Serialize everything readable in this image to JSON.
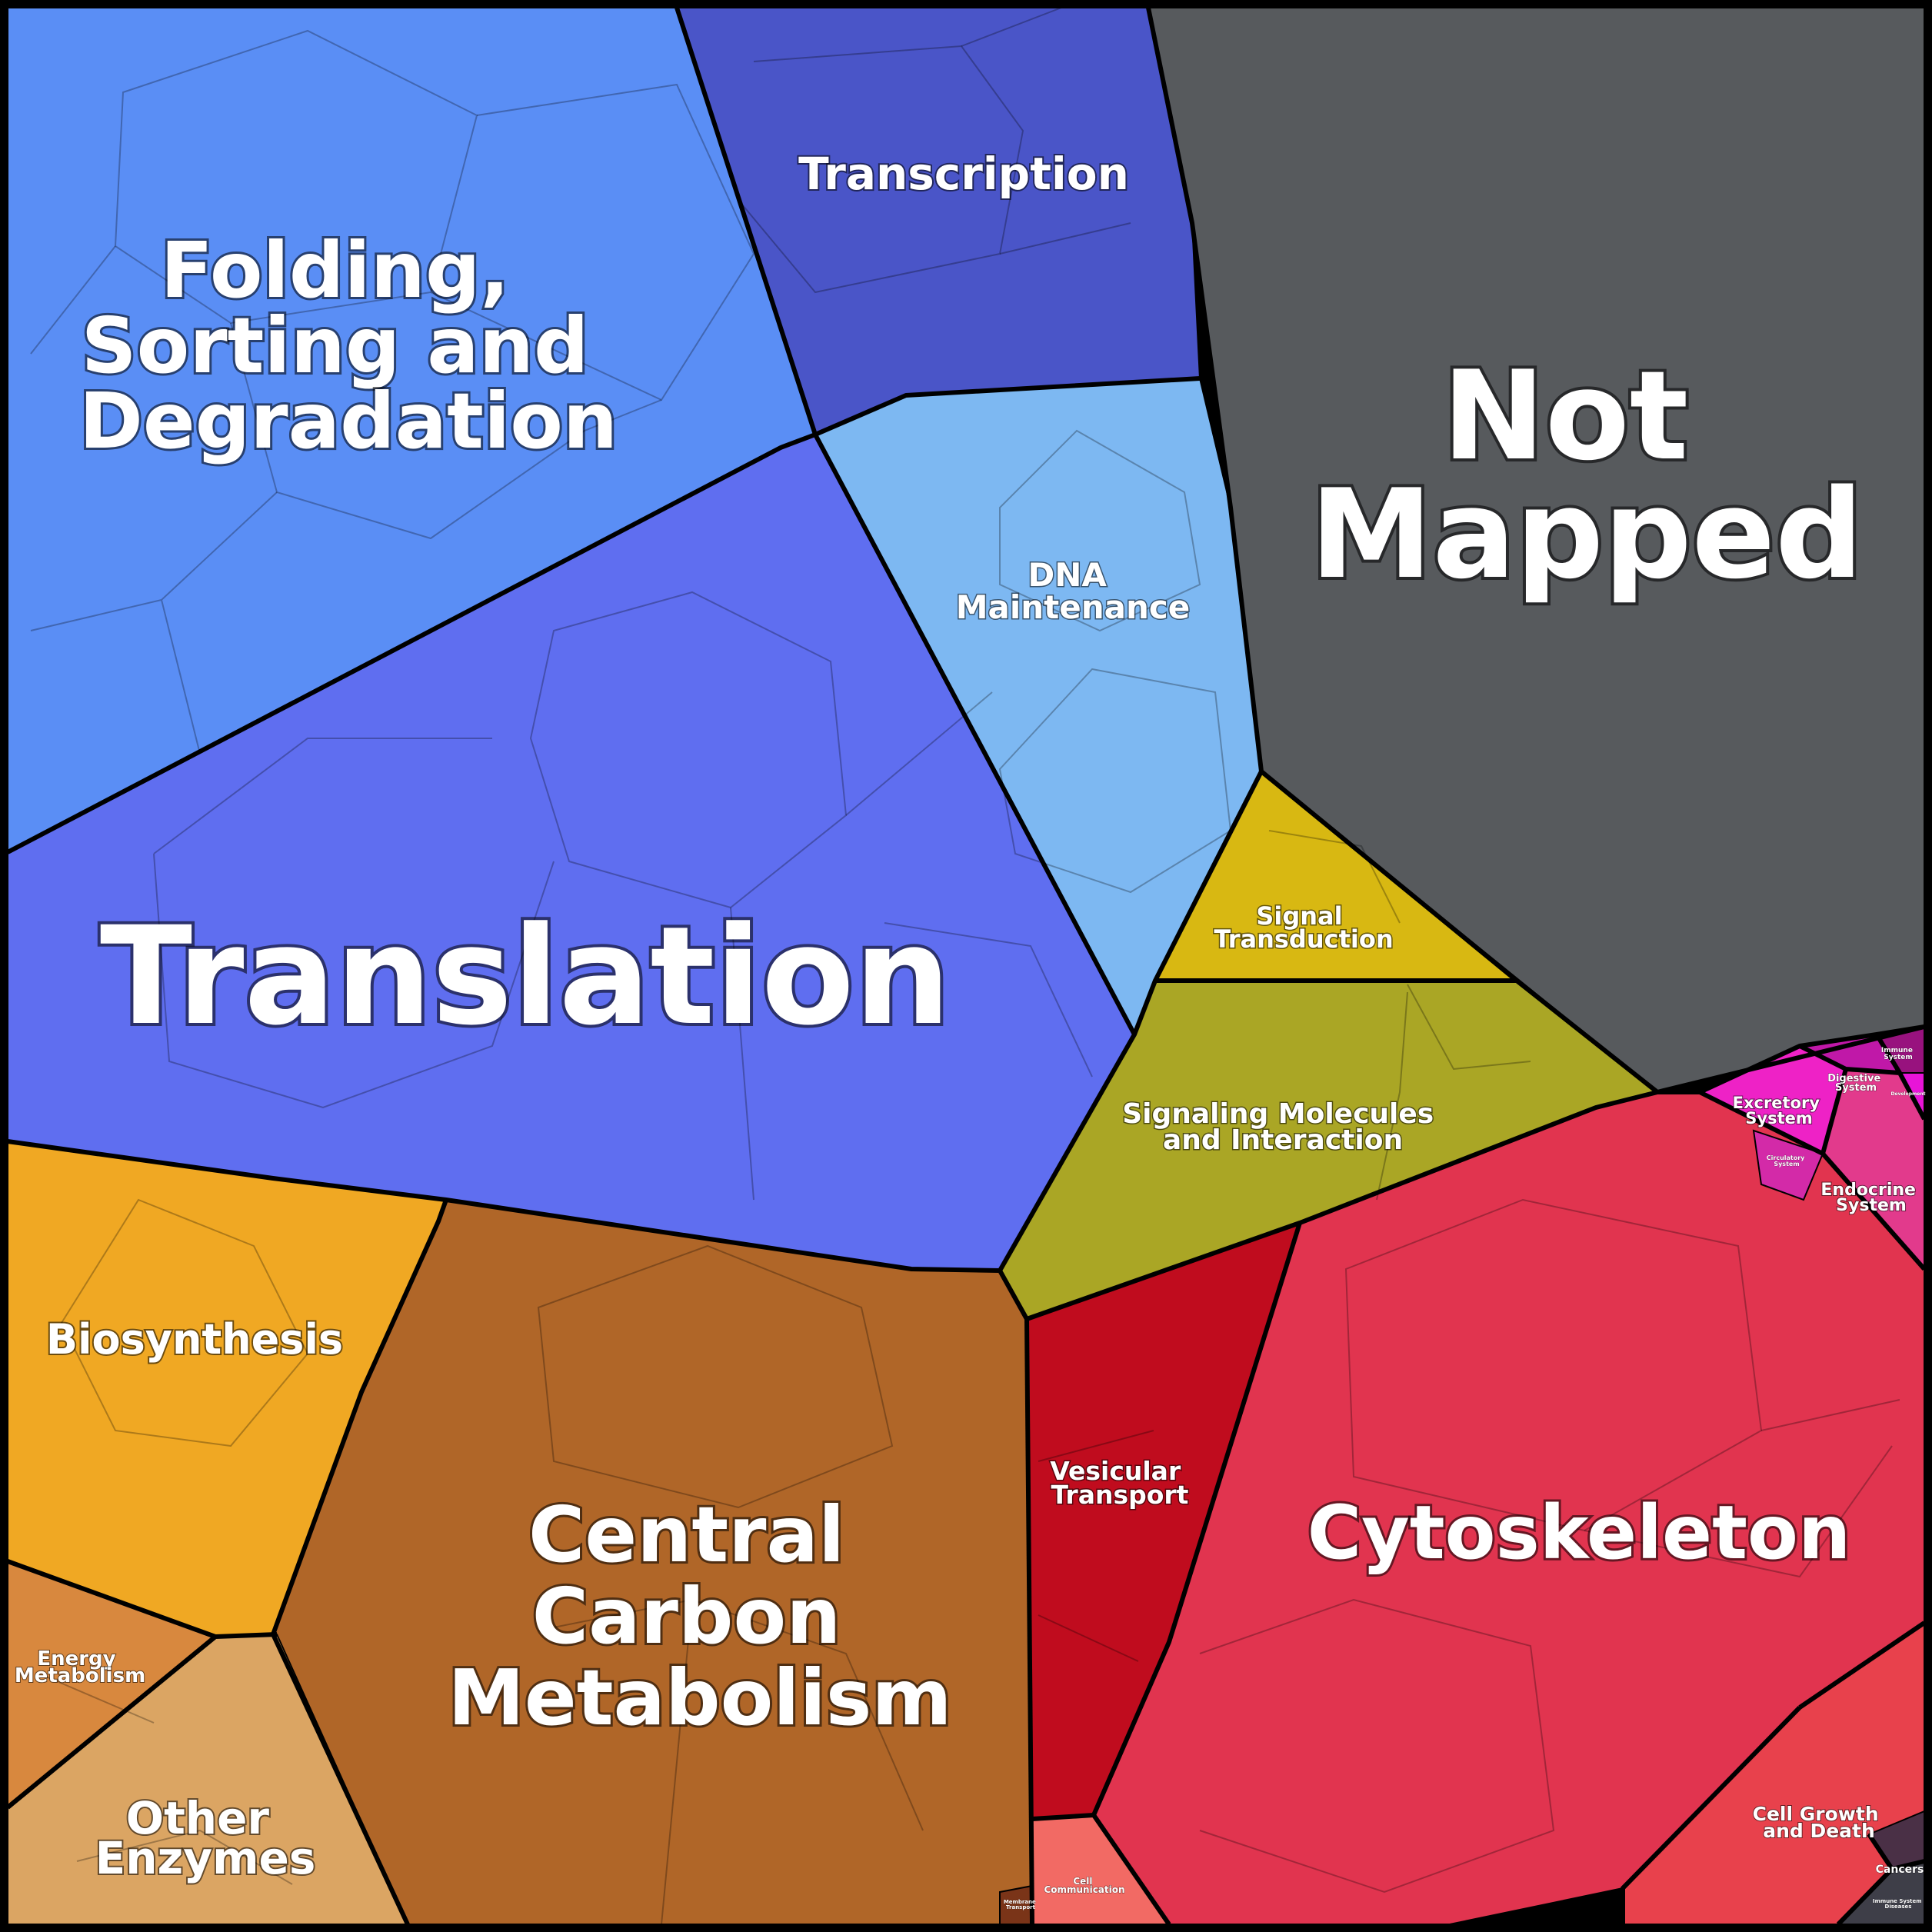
{
  "diagram": {
    "cells": [
      {
        "id": "not-mapped",
        "label": "Not Mapped",
        "color": "#575a5d"
      },
      {
        "id": "folding",
        "label": "Folding, Sorting and Degradation",
        "color": "#5a8ef5"
      },
      {
        "id": "transcription",
        "label": "Transcription",
        "color": "#4a55c8"
      },
      {
        "id": "dna-maintenance",
        "label": "DNA Maintenance",
        "color": "#7db8f2"
      },
      {
        "id": "translation",
        "label": "Translation",
        "color": "#5f6ef0"
      },
      {
        "id": "signal-transduction",
        "label": "Signal Transduction",
        "color": "#d8b812"
      },
      {
        "id": "signaling-molecules",
        "label": "Signaling Molecules and Interaction",
        "color": "#aaa625"
      },
      {
        "id": "biosynthesis",
        "label": "Biosynthesis",
        "color": "#f0a823"
      },
      {
        "id": "central-carbon",
        "label": "Central Carbon Metabolism",
        "color": "#b06628"
      },
      {
        "id": "energy-metabolism",
        "label": "Energy Metabolism",
        "color": "#d8883e"
      },
      {
        "id": "other-enzymes",
        "label": "Other Enzymes",
        "color": "#dba563"
      },
      {
        "id": "vesicular-transport",
        "label": "Vesicular Transport",
        "color": "#c00c1e"
      },
      {
        "id": "cytoskeleton",
        "label": "Cytoskeleton",
        "color": "#e1344f"
      },
      {
        "id": "excretory",
        "label": "Excretory System",
        "color": "#ee22c6"
      },
      {
        "id": "digestive",
        "label": "Digestive System",
        "color": "#c018a8"
      },
      {
        "id": "immune",
        "label": "Immune System",
        "color": "#98127e"
      },
      {
        "id": "endocrine",
        "label": "Endocrine System",
        "color": "#e23a8c"
      },
      {
        "id": "circulatory",
        "label": "Circulatory System",
        "color": "#d32aa8"
      },
      {
        "id": "development",
        "label": "Development",
        "color": "#e814d8"
      },
      {
        "id": "cell-growth",
        "label": "Cell Growth and Death",
        "color": "#e8414c"
      },
      {
        "id": "cell-communication",
        "label": "Cell Communication",
        "color": "#f26a64"
      },
      {
        "id": "membrane-transport",
        "label": "Membrane Transport",
        "color": "#7a3418"
      },
      {
        "id": "immune-diseases",
        "label": "Immune System Diseases",
        "color": "#3e3e48"
      },
      {
        "id": "cancers",
        "label": "Cancers",
        "color": "#4a3046"
      }
    ],
    "labels": {
      "not_mapped": [
        "Not",
        "Mapped"
      ],
      "folding": [
        "Folding,",
        "Sorting and",
        "Degradation"
      ],
      "transcription": [
        "Transcription"
      ],
      "dna_maintenance": [
        "DNA",
        "Maintenance"
      ],
      "translation": [
        "Translation"
      ],
      "signal_transduction": [
        "Signal",
        "Transduction"
      ],
      "signaling_molecules": [
        "Signaling Molecules",
        "and Interaction"
      ],
      "biosynthesis": [
        "Biosynthesis"
      ],
      "central_carbon": [
        "Central",
        "Carbon",
        "Metabolism"
      ],
      "energy_metabolism": [
        "Energy",
        "Metabolism"
      ],
      "other_enzymes": [
        "Other",
        "Enzymes"
      ],
      "vesicular_transport": [
        "Vesicular",
        "Transport"
      ],
      "cytoskeleton": [
        "Cytoskeleton"
      ],
      "excretory": [
        "Excretory",
        "System"
      ],
      "digestive": [
        "Digestive",
        "System"
      ],
      "immune": [
        "Immune",
        "System"
      ],
      "endocrine": [
        "Endocrine",
        "System"
      ],
      "circulatory": [
        "Circulatory",
        "System"
      ],
      "development": [
        "Development"
      ],
      "cell_growth": [
        "Cell Growth",
        "and Death"
      ],
      "cell_communication": [
        "Cell",
        "Communication"
      ],
      "membrane_transport": [
        "Membrane",
        "Transport"
      ],
      "immune_diseases": [
        "Immune System",
        "Diseases"
      ],
      "cancers": [
        "Cancers"
      ]
    }
  }
}
